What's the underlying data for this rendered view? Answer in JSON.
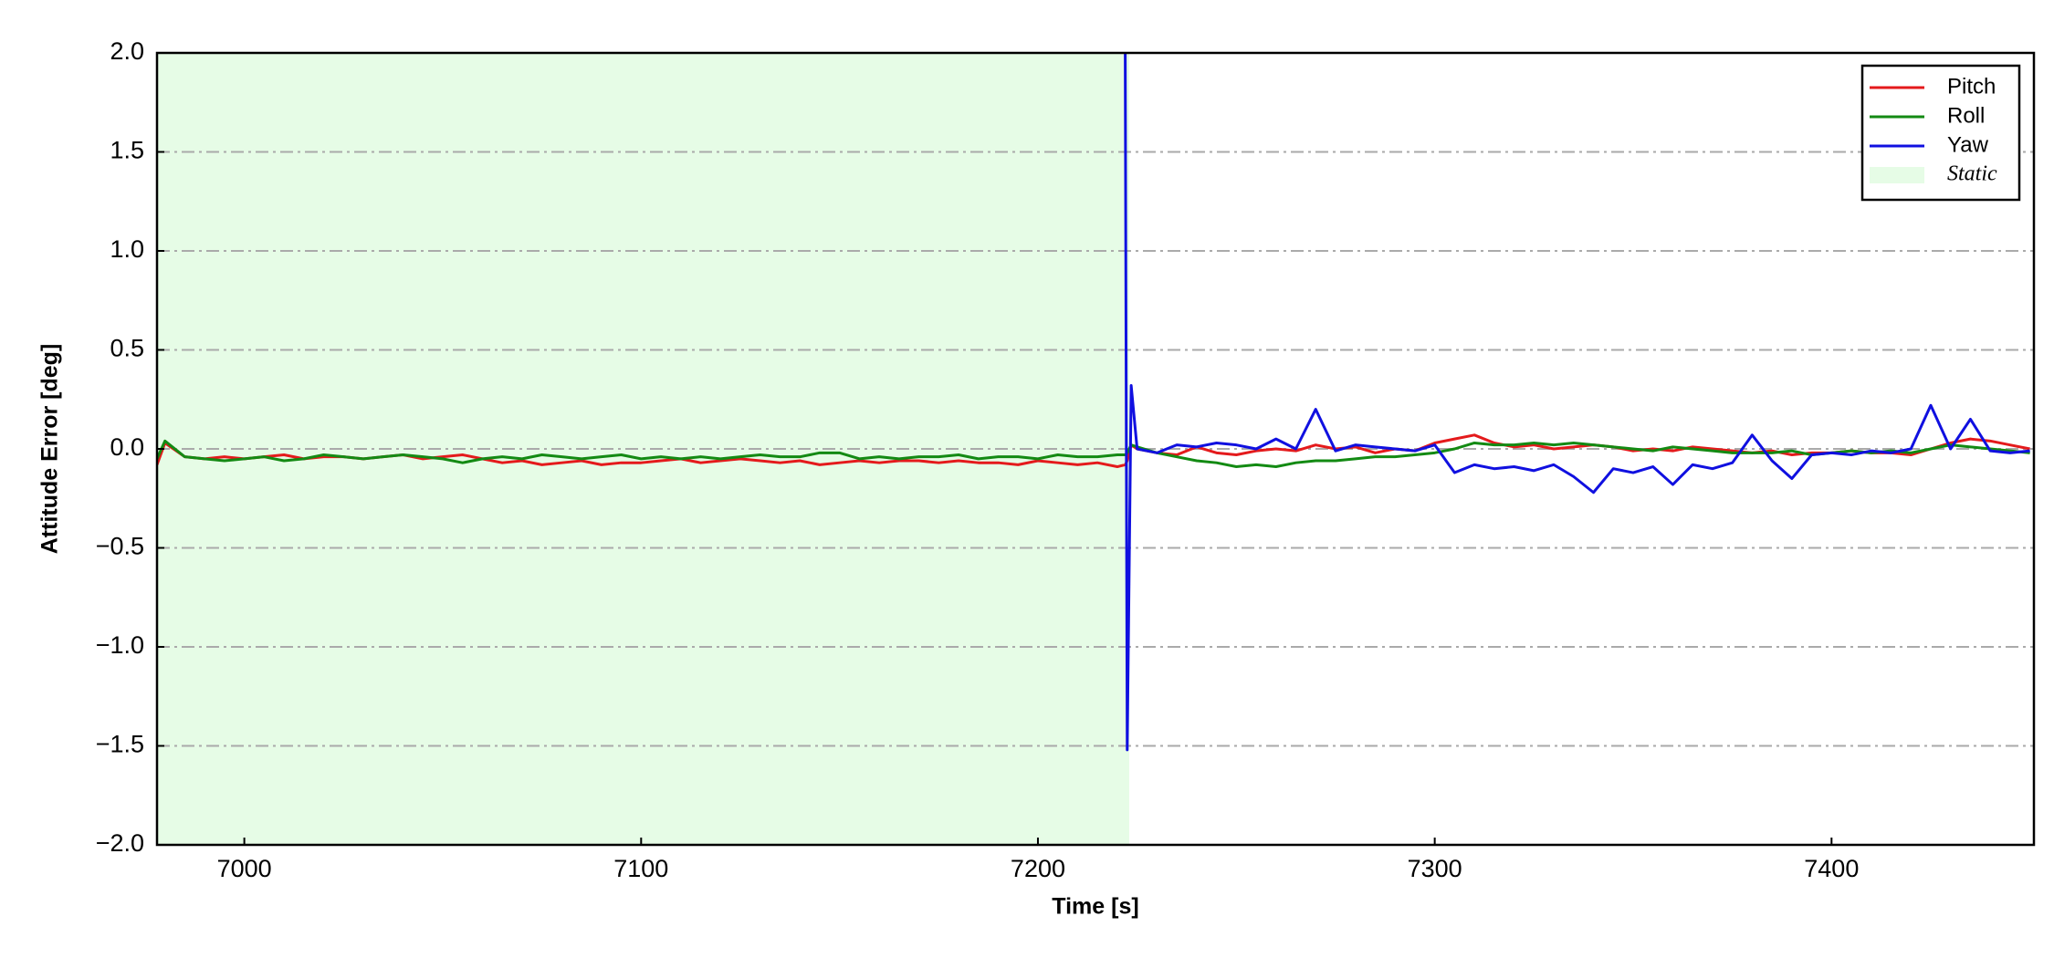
{
  "chart_data": {
    "type": "line",
    "xlabel": "Time [s]",
    "ylabel": "Attitude Error [deg]",
    "xlim": [
      6978,
      7451
    ],
    "ylim": [
      -2.0,
      2.0
    ],
    "xticks": [
      7000,
      7100,
      7200,
      7300,
      7400
    ],
    "yticks": [
      {
        "value": -2.0,
        "label": "−2.0"
      },
      {
        "value": -1.5,
        "label": "−1.5"
      },
      {
        "value": -1.0,
        "label": "−1.0"
      },
      {
        "value": -0.5,
        "label": "−0.5"
      },
      {
        "value": 0.0,
        "label": "0.0"
      },
      {
        "value": 0.5,
        "label": "0.5"
      },
      {
        "value": 1.0,
        "label": "1.0"
      },
      {
        "value": 1.5,
        "label": "1.5"
      },
      {
        "value": 2.0,
        "label": "2.0"
      }
    ],
    "grid": true,
    "legend": "upper right",
    "shaded_regions": [
      {
        "label": "Static",
        "xlim": [
          6978,
          7223
        ],
        "color": "#e6fce6"
      }
    ],
    "x": [
      6978,
      6980,
      6985,
      6990,
      6995,
      7000,
      7005,
      7010,
      7015,
      7020,
      7025,
      7030,
      7035,
      7040,
      7045,
      7050,
      7055,
      7060,
      7065,
      7070,
      7075,
      7080,
      7085,
      7090,
      7095,
      7100,
      7105,
      7110,
      7115,
      7120,
      7125,
      7130,
      7135,
      7140,
      7145,
      7150,
      7155,
      7160,
      7165,
      7170,
      7175,
      7180,
      7185,
      7190,
      7195,
      7200,
      7205,
      7210,
      7215,
      7220,
      7222,
      7222.5,
      7223.5,
      7225,
      7230,
      7235,
      7240,
      7245,
      7250,
      7255,
      7260,
      7265,
      7270,
      7275,
      7280,
      7285,
      7290,
      7295,
      7300,
      7305,
      7310,
      7315,
      7320,
      7325,
      7330,
      7335,
      7340,
      7345,
      7350,
      7355,
      7360,
      7365,
      7370,
      7375,
      7380,
      7385,
      7390,
      7395,
      7400,
      7405,
      7410,
      7415,
      7420,
      7425,
      7430,
      7435,
      7440,
      7445,
      7450
    ],
    "series": [
      {
        "name": "Pitch",
        "color": "#e41a1c",
        "values": [
          -0.08,
          0.03,
          -0.04,
          -0.05,
          -0.04,
          -0.05,
          -0.04,
          -0.03,
          -0.05,
          -0.04,
          -0.04,
          -0.05,
          -0.04,
          -0.03,
          -0.05,
          -0.04,
          -0.03,
          -0.05,
          -0.07,
          -0.06,
          -0.08,
          -0.07,
          -0.06,
          -0.08,
          -0.07,
          -0.07,
          -0.06,
          -0.05,
          -0.07,
          -0.06,
          -0.05,
          -0.06,
          -0.07,
          -0.06,
          -0.08,
          -0.07,
          -0.06,
          -0.07,
          -0.06,
          -0.06,
          -0.07,
          -0.06,
          -0.07,
          -0.07,
          -0.08,
          -0.06,
          -0.07,
          -0.08,
          -0.07,
          -0.09,
          -0.08,
          -0.06,
          0.02,
          0.0,
          -0.02,
          -0.03,
          0.01,
          -0.02,
          -0.03,
          -0.01,
          0.0,
          -0.01,
          0.02,
          0.0,
          0.01,
          -0.02,
          0.0,
          -0.01,
          0.03,
          0.05,
          0.07,
          0.03,
          0.01,
          0.02,
          0.0,
          0.01,
          0.02,
          0.01,
          -0.01,
          0.0,
          -0.01,
          0.01,
          0.0,
          -0.01,
          -0.02,
          -0.01,
          -0.03,
          -0.02,
          -0.02,
          -0.01,
          -0.02,
          -0.02,
          -0.03,
          0.0,
          0.03,
          0.05,
          0.04,
          0.02,
          0.0
        ]
      },
      {
        "name": "Roll",
        "color": "#138a13",
        "values": [
          -0.05,
          0.04,
          -0.04,
          -0.05,
          -0.06,
          -0.05,
          -0.04,
          -0.06,
          -0.05,
          -0.03,
          -0.04,
          -0.05,
          -0.04,
          -0.03,
          -0.04,
          -0.05,
          -0.07,
          -0.05,
          -0.04,
          -0.05,
          -0.03,
          -0.04,
          -0.05,
          -0.04,
          -0.03,
          -0.05,
          -0.04,
          -0.05,
          -0.04,
          -0.05,
          -0.04,
          -0.03,
          -0.04,
          -0.04,
          -0.02,
          -0.02,
          -0.05,
          -0.04,
          -0.05,
          -0.04,
          -0.04,
          -0.03,
          -0.05,
          -0.04,
          -0.04,
          -0.05,
          -0.03,
          -0.04,
          -0.04,
          -0.03,
          -0.03,
          -0.02,
          0.02,
          0.01,
          -0.02,
          -0.04,
          -0.06,
          -0.07,
          -0.09,
          -0.08,
          -0.09,
          -0.07,
          -0.06,
          -0.06,
          -0.05,
          -0.04,
          -0.04,
          -0.03,
          -0.02,
          0.0,
          0.03,
          0.02,
          0.02,
          0.03,
          0.02,
          0.03,
          0.02,
          0.01,
          0.0,
          -0.01,
          0.01,
          0.0,
          -0.01,
          -0.02,
          -0.02,
          -0.02,
          -0.01,
          -0.03,
          -0.02,
          -0.01,
          -0.02,
          -0.01,
          -0.02,
          0.0,
          0.02,
          0.01,
          0.0,
          -0.01,
          -0.02
        ]
      },
      {
        "name": "Yaw",
        "color": "#1010e0",
        "values": [
          null,
          null,
          null,
          null,
          null,
          null,
          null,
          null,
          null,
          null,
          null,
          null,
          null,
          null,
          null,
          null,
          null,
          null,
          null,
          null,
          null,
          null,
          null,
          null,
          null,
          null,
          null,
          null,
          null,
          null,
          null,
          null,
          null,
          null,
          null,
          null,
          null,
          null,
          null,
          null,
          null,
          null,
          null,
          null,
          null,
          null,
          null,
          null,
          null,
          null,
          2.0,
          -1.52,
          0.32,
          0.0,
          -0.02,
          0.02,
          0.01,
          0.03,
          0.02,
          0.0,
          0.05,
          0.0,
          0.2,
          -0.01,
          0.02,
          0.01,
          0.0,
          -0.01,
          0.02,
          -0.12,
          -0.08,
          -0.1,
          -0.09,
          -0.11,
          -0.08,
          -0.14,
          -0.22,
          -0.1,
          -0.12,
          -0.09,
          -0.18,
          -0.08,
          -0.1,
          -0.07,
          0.07,
          -0.06,
          -0.15,
          -0.03,
          -0.02,
          -0.03,
          -0.01,
          -0.02,
          0.0,
          0.22,
          0.0,
          0.15,
          -0.01,
          -0.02,
          -0.01
        ]
      }
    ]
  }
}
